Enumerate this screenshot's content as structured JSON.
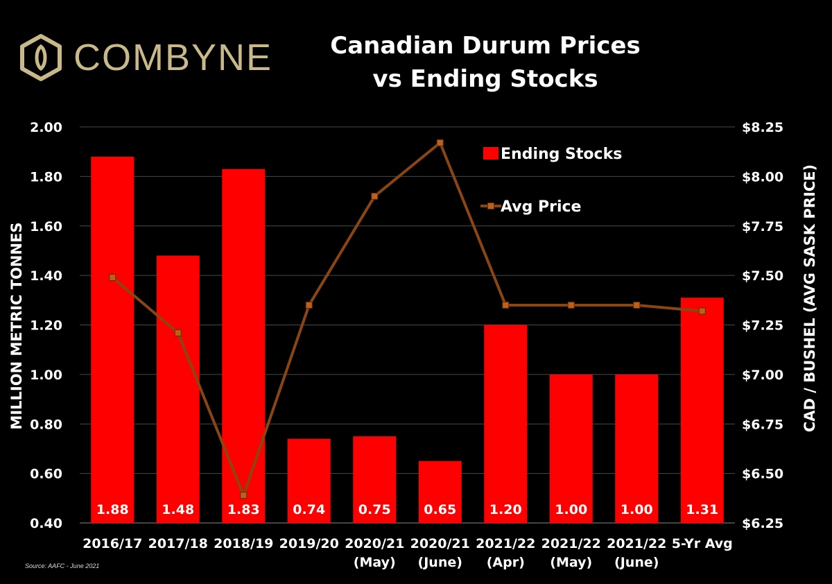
{
  "logo": {
    "text": "COMBYNE"
  },
  "title_line1": "Canadian Durum Prices",
  "title_line2": "vs Ending Stocks",
  "source": "Source: AAFC - June 2021",
  "colors": {
    "bars": "#ff0000",
    "line": "#8b4513",
    "marker": "#c06018",
    "logo": "#c9b98a"
  },
  "chart_data": {
    "type": "bar",
    "categories": [
      [
        "2016/17"
      ],
      [
        "2017/18"
      ],
      [
        "2018/19"
      ],
      [
        "2019/20"
      ],
      [
        "2020/21",
        "(May)"
      ],
      [
        "2020/21",
        "(June)"
      ],
      [
        "2021/22",
        "(Apr)"
      ],
      [
        "2021/22",
        "(May)"
      ],
      [
        "2021/22",
        "(June)"
      ],
      [
        "5-Yr Avg"
      ]
    ],
    "series": [
      {
        "name": "Ending Stocks",
        "type": "bar",
        "axis": "left",
        "values": [
          1.88,
          1.48,
          1.83,
          0.74,
          0.75,
          0.65,
          1.2,
          1.0,
          1.0,
          1.31
        ],
        "labels": [
          "1.88",
          "1.48",
          "1.83",
          "0.74",
          "0.75",
          "0.65",
          "1.20",
          "1.00",
          "1.00",
          "1.31"
        ]
      },
      {
        "name": "Avg Price",
        "type": "line",
        "axis": "right",
        "values": [
          7.49,
          7.21,
          6.39,
          7.35,
          7.9,
          8.17,
          7.35,
          7.35,
          7.35,
          7.32
        ]
      }
    ],
    "ylabel": "MILLION METRIC TONNES",
    "y2label": "CAD / BUSHEL (AVG SASK PRICE)",
    "ylim": [
      0.4,
      2.0
    ],
    "yticks": [
      "0.40",
      "0.60",
      "0.80",
      "1.00",
      "1.20",
      "1.40",
      "1.60",
      "1.80",
      "2.00"
    ],
    "y2lim": [
      6.25,
      8.25
    ],
    "y2ticks": [
      "$6.25",
      "$6.50",
      "$6.75",
      "$7.00",
      "$7.25",
      "$7.50",
      "$7.75",
      "$8.00",
      "$8.25"
    ],
    "grid": true,
    "legend_position": "top-center"
  }
}
